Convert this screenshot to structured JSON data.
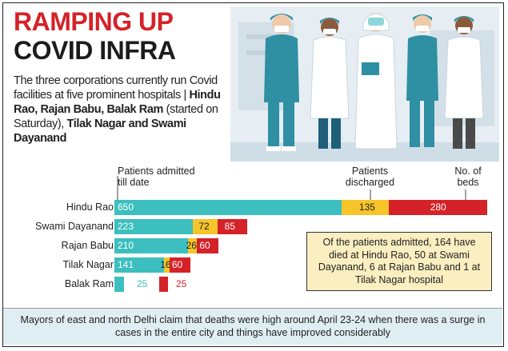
{
  "title_line1": "RAMPING UP",
  "title_line2": "COVID INFRA",
  "intro": {
    "plain1": "The three corporations currently run Covid facilities at five prominent hospitals | ",
    "bold1": "Hindu Rao, Rajan Babu, Balak Ram",
    "plain2": " (started on Saturday), ",
    "bold2": "Tilak Nagar and Swami Dayanand"
  },
  "headers": {
    "admitted": "Patients admitted till date",
    "discharged": "Patients discharged",
    "beds": "No. of beds"
  },
  "note": "Of the patients admitted, 164 have died at Hindu Rao, 50 at Swami Dayanand, 6 at Rajan Babu and 1 at Tilak Nagar hospital",
  "footer": "Mayors of east and north Delhi claim that deaths were high around April 23-24 when there was a surge in cases in the entire city and things have improved considerably",
  "colors": {
    "admitted": "#3cbfbe",
    "discharged": "#f7c52a",
    "beds": "#d42228"
  },
  "chart_data": {
    "type": "bar",
    "orientation": "horizontal",
    "stacked": true,
    "categories": [
      "Hindu Rao",
      "Swami Dayanand",
      "Rajan Babu",
      "Tilak Nagar",
      "Balak Ram"
    ],
    "series": [
      {
        "name": "Patients admitted till date",
        "values": [
          650,
          223,
          210,
          141,
          25
        ]
      },
      {
        "name": "Patients discharged",
        "values": [
          135,
          72,
          26,
          16,
          0
        ]
      },
      {
        "name": "No. of beds",
        "values": [
          280,
          85,
          60,
          60,
          25
        ]
      }
    ],
    "labels": [
      [
        "650",
        "135",
        "280"
      ],
      [
        "223",
        "72",
        "85"
      ],
      [
        "210",
        "26",
        "60"
      ],
      [
        "141",
        "16",
        "60"
      ],
      [
        "25",
        "",
        "25"
      ]
    ]
  }
}
